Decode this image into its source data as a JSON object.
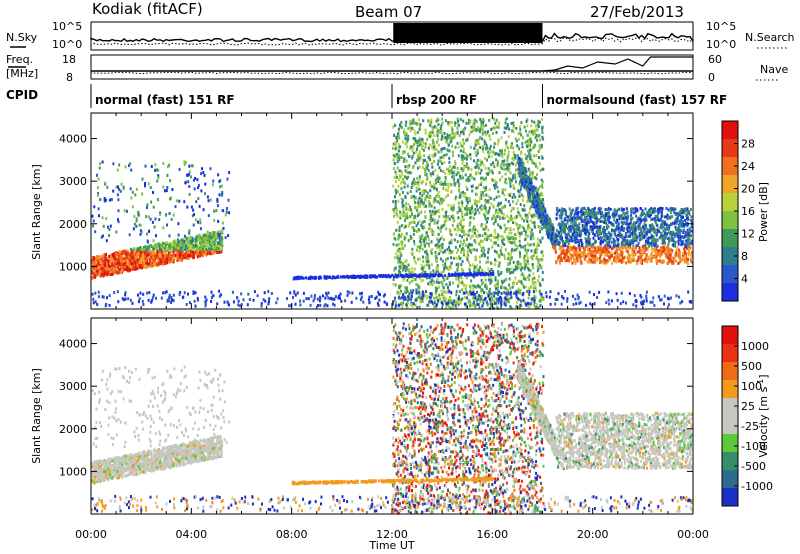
{
  "header": {
    "station": "Kodiak (fitACF)",
    "beam": "Beam 07",
    "date": "27/Feb/2013"
  },
  "summary_panel": {
    "left_label_top": "N.Sky",
    "right_label_top": "N.Search",
    "top_ticks_left": [
      "10^5",
      "10^0"
    ],
    "top_ticks_right": [
      "10^5",
      "10^0"
    ],
    "left_label_freq_1": "Freq.",
    "left_label_freq_2": "[MHz]",
    "right_label_nave": "Nave",
    "freq_ticks": [
      "18",
      "8"
    ],
    "nave_ticks": [
      "60",
      "0"
    ],
    "cpid_label": "CPID"
  },
  "cpid_segments": [
    {
      "label": "normal (fast) 151 RF",
      "start": 0,
      "end": 12
    },
    {
      "label": "rbsp 200 RF",
      "start": 12,
      "end": 18
    },
    {
      "label": "normalsound (fast) 157 RF",
      "start": 18,
      "end": 24
    }
  ],
  "chart_data": [
    {
      "type": "heatmap",
      "name": "power",
      "ylabel": "Slant Range [km]",
      "x_range_hours": [
        0,
        24
      ],
      "ylim": [
        0,
        4600
      ],
      "yticks": [
        "1000",
        "2000",
        "3000",
        "4000"
      ],
      "colorbar_label": "Power [dB]",
      "colorbar_ticks": [
        "4",
        "8",
        "12",
        "16",
        "20",
        "24",
        "28"
      ],
      "colorbar_colors": [
        "#1a2fe0",
        "#2c57c8",
        "#2f7e8e",
        "#3f9a5a",
        "#7fc241",
        "#b7d23a",
        "#f0a42a",
        "#f0701e",
        "#e8381a",
        "#e11010"
      ],
      "grid": false
    },
    {
      "type": "heatmap",
      "name": "velocity",
      "ylabel": "Slant Range [km]",
      "xlabel": "Time UT",
      "x_range_hours": [
        0,
        24
      ],
      "ylim": [
        0,
        4600
      ],
      "yticks": [
        "1000",
        "2000",
        "3000",
        "4000"
      ],
      "xticks": [
        "00:00",
        "04:00",
        "08:00",
        "12:00",
        "16:00",
        "20:00",
        "00:00"
      ],
      "colorbar_label": "Velocity [m s",
      "colorbar_label_sup": "-1",
      "colorbar_label_end": "]",
      "colorbar_ticks": [
        "1000",
        "500",
        "100",
        "25",
        "-25",
        "-100",
        "-500",
        "-1000"
      ],
      "colorbar_colors": [
        "#1b31c6",
        "#2f6b8e",
        "#35906a",
        "#5dc83a",
        "#c7c7c1",
        "#c7c7c1",
        "#f39a1c",
        "#f06a18",
        "#ec3016",
        "#e41010"
      ],
      "grid": false
    }
  ]
}
